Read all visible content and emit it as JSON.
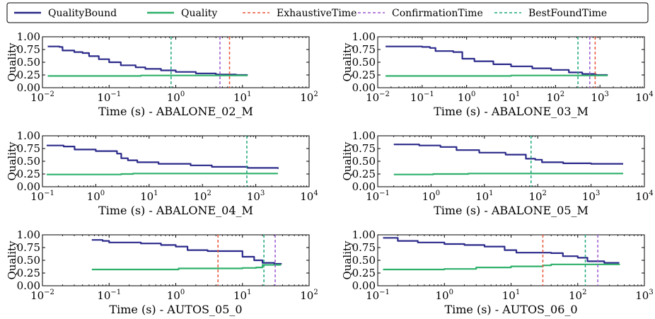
{
  "colors": {
    "QualityBound": "#2b2a8a",
    "Quality": "#2fb06a",
    "ExhaustiveTime": "#e8553a",
    "ConfirmationTime": "#9b59d0",
    "BestFoundTime": "#1fa87a"
  },
  "legend": [
    {
      "key": "QualityBound",
      "label": "QualityBound",
      "style": "solid"
    },
    {
      "key": "Quality",
      "label": "Quality",
      "style": "solid"
    },
    {
      "key": "ExhaustiveTime",
      "label": "ExhaustiveTime",
      "style": "dashed"
    },
    {
      "key": "ConfirmationTime",
      "label": "ConfirmationTime",
      "style": "dashed"
    },
    {
      "key": "BestFoundTime",
      "label": "BestFoundTime",
      "style": "dashed"
    }
  ],
  "chart_data": [
    {
      "type": "line",
      "xscale": "log",
      "xlabel": "Time (s) - ABALONE_02_M",
      "ylabel": "Quality",
      "xlim": [
        0.01,
        100
      ],
      "ylim": [
        0,
        1
      ],
      "xticks": [
        {
          "v": 0.01,
          "base": "10",
          "exp": "−2"
        },
        {
          "v": 0.1,
          "base": "10",
          "exp": "−1"
        },
        {
          "v": 1,
          "base": "10",
          "exp": "0"
        },
        {
          "v": 10,
          "base": "10",
          "exp": "1"
        },
        {
          "v": 100,
          "base": "10",
          "exp": "2"
        }
      ],
      "yticks": [
        "0.00",
        "0.25",
        "0.50",
        "0.75",
        "1.00"
      ],
      "series": [
        {
          "name": "QualityBound",
          "points": [
            [
              0.012,
              0.81
            ],
            [
              0.018,
              0.8
            ],
            [
              0.02,
              0.73
            ],
            [
              0.03,
              0.7
            ],
            [
              0.04,
              0.68
            ],
            [
              0.05,
              0.62
            ],
            [
              0.07,
              0.56
            ],
            [
              0.1,
              0.5
            ],
            [
              0.15,
              0.44
            ],
            [
              0.25,
              0.4
            ],
            [
              0.35,
              0.37
            ],
            [
              0.6,
              0.34
            ],
            [
              1,
              0.31
            ],
            [
              2,
              0.28
            ],
            [
              4,
              0.26
            ],
            [
              8,
              0.25
            ],
            [
              12,
              0.25
            ]
          ]
        },
        {
          "name": "Quality",
          "points": [
            [
              0.012,
              0.23
            ],
            [
              0.1,
              0.23
            ],
            [
              0.3,
              0.24
            ],
            [
              1,
              0.24
            ],
            [
              12,
              0.24
            ]
          ]
        }
      ],
      "vlines": [
        {
          "key": "BestFoundTime",
          "x": 0.85
        },
        {
          "key": "ConfirmationTime",
          "x": 4.6
        },
        {
          "key": "ExhaustiveTime",
          "x": 6.4
        }
      ]
    },
    {
      "type": "line",
      "xscale": "log",
      "xlabel": "Time (s) - ABALONE_03_M",
      "ylabel": "Quality",
      "xlim": [
        0.01,
        10000
      ],
      "ylim": [
        0,
        1
      ],
      "xticks": [
        {
          "v": 0.01,
          "base": "10",
          "exp": "−2"
        },
        {
          "v": 0.1,
          "base": "10",
          "exp": "−1"
        },
        {
          "v": 1,
          "base": "10",
          "exp": "0"
        },
        {
          "v": 10,
          "base": "10",
          "exp": "1"
        },
        {
          "v": 100,
          "base": "10",
          "exp": "2"
        },
        {
          "v": 1000,
          "base": "10",
          "exp": "3"
        },
        {
          "v": 10000,
          "base": "10",
          "exp": "4"
        }
      ],
      "yticks": [
        "0.00",
        "0.25",
        "0.50",
        "0.75",
        "1.00"
      ],
      "series": [
        {
          "name": "QualityBound",
          "points": [
            [
              0.015,
              0.81
            ],
            [
              0.1,
              0.8
            ],
            [
              0.15,
              0.78
            ],
            [
              0.2,
              0.72
            ],
            [
              0.5,
              0.7
            ],
            [
              0.8,
              0.57
            ],
            [
              1.5,
              0.52
            ],
            [
              4,
              0.46
            ],
            [
              10,
              0.42
            ],
            [
              30,
              0.38
            ],
            [
              80,
              0.35
            ],
            [
              200,
              0.3
            ],
            [
              400,
              0.27
            ],
            [
              800,
              0.25
            ],
            [
              1500,
              0.25
            ]
          ]
        },
        {
          "name": "Quality",
          "points": [
            [
              0.015,
              0.23
            ],
            [
              1,
              0.23
            ],
            [
              10,
              0.24
            ],
            [
              100,
              0.24
            ],
            [
              1500,
              0.24
            ]
          ]
        }
      ],
      "vlines": [
        {
          "key": "BestFoundTime",
          "x": 320
        },
        {
          "key": "ConfirmationTime",
          "x": 590
        },
        {
          "key": "ExhaustiveTime",
          "x": 780
        }
      ]
    },
    {
      "type": "line",
      "xscale": "log",
      "xlabel": "Time (s) - ABALONE_04_M",
      "ylabel": "Quality",
      "xlim": [
        0.1,
        10000
      ],
      "ylim": [
        0,
        1
      ],
      "xticks": [
        {
          "v": 0.1,
          "base": "10",
          "exp": "−1"
        },
        {
          "v": 1,
          "base": "10",
          "exp": "0"
        },
        {
          "v": 10,
          "base": "10",
          "exp": "1"
        },
        {
          "v": 100,
          "base": "10",
          "exp": "2"
        },
        {
          "v": 1000,
          "base": "10",
          "exp": "3"
        },
        {
          "v": 10000,
          "base": "10",
          "exp": "4"
        }
      ],
      "yticks": [
        "0.00",
        "0.25",
        "0.50",
        "0.75",
        "1.00"
      ],
      "series": [
        {
          "name": "QualityBound",
          "points": [
            [
              0.12,
              0.81
            ],
            [
              0.25,
              0.79
            ],
            [
              0.4,
              0.73
            ],
            [
              1,
              0.7
            ],
            [
              2.5,
              0.65
            ],
            [
              3,
              0.56
            ],
            [
              4,
              0.52
            ],
            [
              6,
              0.48
            ],
            [
              15,
              0.45
            ],
            [
              60,
              0.42
            ],
            [
              150,
              0.39
            ],
            [
              700,
              0.37
            ],
            [
              2600,
              0.35
            ]
          ]
        },
        {
          "name": "Quality",
          "points": [
            [
              0.12,
              0.24
            ],
            [
              2,
              0.24
            ],
            [
              3,
              0.25
            ],
            [
              5,
              0.26
            ],
            [
              100,
              0.26
            ],
            [
              2600,
              0.26
            ]
          ]
        }
      ],
      "vlines": [
        {
          "key": "BestFoundTime",
          "x": 680
        }
      ]
    },
    {
      "type": "line",
      "xscale": "log",
      "xlabel": "Time (s) - ABALONE_05_M",
      "ylabel": "Quality",
      "xlim": [
        0.1,
        10000
      ],
      "ylim": [
        0,
        1
      ],
      "xticks": [
        {
          "v": 0.1,
          "base": "10",
          "exp": "−1"
        },
        {
          "v": 1,
          "base": "10",
          "exp": "0"
        },
        {
          "v": 10,
          "base": "10",
          "exp": "1"
        },
        {
          "v": 100,
          "base": "10",
          "exp": "2"
        },
        {
          "v": 1000,
          "base": "10",
          "exp": "3"
        },
        {
          "v": 10000,
          "base": "10",
          "exp": "4"
        }
      ],
      "yticks": [
        "0.00",
        "0.25",
        "0.50",
        "0.75",
        "1.00"
      ],
      "series": [
        {
          "name": "QualityBound",
          "points": [
            [
              0.2,
              0.83
            ],
            [
              0.6,
              0.81
            ],
            [
              1.5,
              0.78
            ],
            [
              3,
              0.72
            ],
            [
              8,
              0.67
            ],
            [
              25,
              0.63
            ],
            [
              60,
              0.55
            ],
            [
              90,
              0.53
            ],
            [
              120,
              0.48
            ],
            [
              300,
              0.46
            ],
            [
              1000,
              0.45
            ],
            [
              4000,
              0.45
            ]
          ]
        },
        {
          "name": "Quality",
          "points": [
            [
              0.2,
              0.24
            ],
            [
              0.9,
              0.24
            ],
            [
              1.1,
              0.25
            ],
            [
              5,
              0.26
            ],
            [
              100,
              0.26
            ],
            [
              4000,
              0.26
            ]
          ]
        }
      ],
      "vlines": [
        {
          "key": "BestFoundTime",
          "x": 75
        }
      ]
    },
    {
      "type": "line",
      "xscale": "log",
      "xlabel": "Time (s) - AUTOS_05_0",
      "ylabel": "Quality",
      "xlim": [
        0.01,
        100
      ],
      "ylim": [
        0,
        1
      ],
      "xticks": [
        {
          "v": 0.01,
          "base": "10",
          "exp": "−2"
        },
        {
          "v": 0.1,
          "base": "10",
          "exp": "−1"
        },
        {
          "v": 1,
          "base": "10",
          "exp": "0"
        },
        {
          "v": 10,
          "base": "10",
          "exp": "1"
        },
        {
          "v": 100,
          "base": "10",
          "exp": "2"
        }
      ],
      "yticks": [
        "0.00",
        "0.25",
        "0.50",
        "0.75",
        "1.00"
      ],
      "series": [
        {
          "name": "QualityBound",
          "points": [
            [
              0.055,
              0.9
            ],
            [
              0.08,
              0.88
            ],
            [
              0.1,
              0.85
            ],
            [
              0.3,
              0.83
            ],
            [
              0.6,
              0.8
            ],
            [
              1,
              0.77
            ],
            [
              1.5,
              0.7
            ],
            [
              3,
              0.68
            ],
            [
              8,
              0.68
            ],
            [
              10,
              0.57
            ],
            [
              15,
              0.5
            ],
            [
              20,
              0.45
            ],
            [
              30,
              0.43
            ],
            [
              38,
              0.42
            ]
          ]
        },
        {
          "name": "Quality",
          "points": [
            [
              0.055,
              0.32
            ],
            [
              0.9,
              0.32
            ],
            [
              1.1,
              0.34
            ],
            [
              10,
              0.35
            ],
            [
              16,
              0.36
            ],
            [
              20,
              0.41
            ],
            [
              38,
              0.41
            ]
          ]
        }
      ],
      "vlines": [
        {
          "key": "ExhaustiveTime",
          "x": 4.3
        },
        {
          "key": "BestFoundTime",
          "x": 21
        },
        {
          "key": "ConfirmationTime",
          "x": 31
        }
      ]
    },
    {
      "type": "line",
      "xscale": "log",
      "xlabel": "Time (s) - AUTOS_06_0",
      "ylabel": "Quality",
      "xlim": [
        0.1,
        1000
      ],
      "ylim": [
        0,
        1
      ],
      "xticks": [
        {
          "v": 0.1,
          "base": "10",
          "exp": "−1"
        },
        {
          "v": 1,
          "base": "10",
          "exp": "0"
        },
        {
          "v": 10,
          "base": "10",
          "exp": "1"
        },
        {
          "v": 100,
          "base": "10",
          "exp": "2"
        },
        {
          "v": 1000,
          "base": "10",
          "exp": "3"
        }
      ],
      "yticks": [
        "0.00",
        "0.25",
        "0.50",
        "0.75",
        "1.00"
      ],
      "series": [
        {
          "name": "QualityBound",
          "points": [
            [
              0.12,
              0.94
            ],
            [
              0.2,
              0.88
            ],
            [
              0.4,
              0.85
            ],
            [
              1,
              0.82
            ],
            [
              2,
              0.8
            ],
            [
              4,
              0.77
            ],
            [
              8,
              0.7
            ],
            [
              12,
              0.65
            ],
            [
              40,
              0.64
            ],
            [
              60,
              0.58
            ],
            [
              100,
              0.55
            ],
            [
              140,
              0.48
            ],
            [
              250,
              0.45
            ],
            [
              420,
              0.45
            ]
          ]
        },
        {
          "name": "Quality",
          "points": [
            [
              0.12,
              0.32
            ],
            [
              1,
              0.33
            ],
            [
              3,
              0.36
            ],
            [
              10,
              0.38
            ],
            [
              30,
              0.4
            ],
            [
              40,
              0.42
            ],
            [
              420,
              0.43
            ]
          ]
        }
      ],
      "vlines": [
        {
          "key": "ExhaustiveTime",
          "x": 30
        },
        {
          "key": "BestFoundTime",
          "x": 130
        },
        {
          "key": "ConfirmationTime",
          "x": 200
        }
      ]
    }
  ]
}
